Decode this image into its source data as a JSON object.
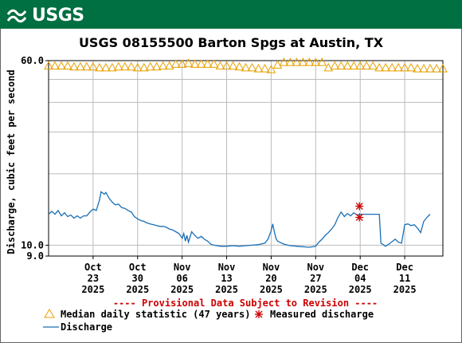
{
  "header": {
    "logo_text": "USGS"
  },
  "chart_data": {
    "type": "line",
    "title": "USGS 08155500 Barton Spgs at Austin, TX",
    "ylabel": "Discharge, cubic feet per second",
    "xlabel": "",
    "yscale": "log",
    "ylim": [
      9.0,
      60.0
    ],
    "y_tick_labels": [
      "9.0",
      "10.0",
      "60.0"
    ],
    "grid": true,
    "x_ticks": [
      {
        "month": "Oct",
        "day": "23",
        "year": "2025"
      },
      {
        "month": "Oct",
        "day": "30",
        "year": "2025"
      },
      {
        "month": "Nov",
        "day": "06",
        "year": "2025"
      },
      {
        "month": "Nov",
        "day": "13",
        "year": "2025"
      },
      {
        "month": "Nov",
        "day": "20",
        "year": "2025"
      },
      {
        "month": "Nov",
        "day": "27",
        "year": "2025"
      },
      {
        "month": "Dec",
        "day": "04",
        "year": "2025"
      },
      {
        "month": "Dec",
        "day": "11",
        "year": "2025"
      }
    ],
    "x_range": [
      "2025-10-16",
      "2025-12-17"
    ],
    "provisional_note": "---- Provisional Data Subject to Revision ----",
    "legend": [
      {
        "label": "Median daily statistic (47 years)",
        "marker": "triangle",
        "color": "#e8a000"
      },
      {
        "label": "Measured discharge",
        "marker": "asterisk",
        "color": "#cc0000"
      },
      {
        "label": "Discharge",
        "marker": "line",
        "color": "#1a6fb5"
      }
    ],
    "median_series": {
      "name": "Median daily statistic (47 years)",
      "points": [
        [
          "2025-10-16",
          57
        ],
        [
          "2025-10-17",
          57
        ],
        [
          "2025-10-18",
          57
        ],
        [
          "2025-10-19",
          57
        ],
        [
          "2025-10-20",
          56.5
        ],
        [
          "2025-10-21",
          56.5
        ],
        [
          "2025-10-22",
          56.5
        ],
        [
          "2025-10-23",
          56.5
        ],
        [
          "2025-10-24",
          56
        ],
        [
          "2025-10-25",
          56
        ],
        [
          "2025-10-26",
          56
        ],
        [
          "2025-10-27",
          56.5
        ],
        [
          "2025-10-28",
          56.5
        ],
        [
          "2025-10-29",
          56.5
        ],
        [
          "2025-10-30",
          56
        ],
        [
          "2025-10-31",
          56
        ],
        [
          "2025-11-01",
          56.5
        ],
        [
          "2025-11-02",
          56.5
        ],
        [
          "2025-11-03",
          57
        ],
        [
          "2025-11-04",
          57
        ],
        [
          "2025-11-05",
          58
        ],
        [
          "2025-11-06",
          58
        ],
        [
          "2025-11-07",
          58.5
        ],
        [
          "2025-11-08",
          58
        ],
        [
          "2025-11-09",
          58
        ],
        [
          "2025-11-10",
          58
        ],
        [
          "2025-11-11",
          58
        ],
        [
          "2025-11-12",
          57
        ],
        [
          "2025-11-13",
          57
        ],
        [
          "2025-11-14",
          57
        ],
        [
          "2025-11-15",
          56.5
        ],
        [
          "2025-11-16",
          56
        ],
        [
          "2025-11-17",
          56
        ],
        [
          "2025-11-18",
          55.5
        ],
        [
          "2025-11-19",
          55.5
        ],
        [
          "2025-11-20",
          55
        ],
        [
          "2025-11-21",
          57.5
        ],
        [
          "2025-11-22",
          59
        ],
        [
          "2025-11-23",
          59
        ],
        [
          "2025-11-24",
          59
        ],
        [
          "2025-11-25",
          59
        ],
        [
          "2025-11-26",
          59
        ],
        [
          "2025-11-27",
          59
        ],
        [
          "2025-11-28",
          59
        ],
        [
          "2025-11-29",
          56
        ],
        [
          "2025-11-30",
          57
        ],
        [
          "2025-12-01",
          57
        ],
        [
          "2025-12-02",
          57
        ],
        [
          "2025-12-03",
          57
        ],
        [
          "2025-12-04",
          57
        ],
        [
          "2025-12-05",
          57
        ],
        [
          "2025-12-06",
          57
        ],
        [
          "2025-12-07",
          56
        ],
        [
          "2025-12-08",
          56
        ],
        [
          "2025-12-09",
          56
        ],
        [
          "2025-12-10",
          56
        ],
        [
          "2025-12-11",
          56
        ],
        [
          "2025-12-12",
          56
        ],
        [
          "2025-12-13",
          55.5
        ],
        [
          "2025-12-14",
          55.5
        ],
        [
          "2025-12-15",
          55.5
        ],
        [
          "2025-12-16",
          55.5
        ],
        [
          "2025-12-17",
          55.5
        ]
      ]
    },
    "measured_series": {
      "name": "Measured discharge",
      "points": [
        [
          "2025-12-03T21:00",
          14.6
        ],
        [
          "2025-12-03T21:00",
          13.1
        ]
      ]
    },
    "discharge_series": {
      "name": "Discharge",
      "points": [
        [
          "2025-10-16",
          13.5
        ],
        [
          "2025-10-16T12:00",
          13.9
        ],
        [
          "2025-10-17",
          13.5
        ],
        [
          "2025-10-17T12:00",
          14.0
        ],
        [
          "2025-10-18",
          13.3
        ],
        [
          "2025-10-18T12:00",
          13.7
        ],
        [
          "2025-10-19",
          13.2
        ],
        [
          "2025-10-19T12:00",
          13.4
        ],
        [
          "2025-10-20",
          13.0
        ],
        [
          "2025-10-20T12:00",
          13.3
        ],
        [
          "2025-10-21",
          13.0
        ],
        [
          "2025-10-21T12:00",
          13.3
        ],
        [
          "2025-10-22",
          13.3
        ],
        [
          "2025-10-22T12:00",
          13.8
        ],
        [
          "2025-10-23",
          14.2
        ],
        [
          "2025-10-23T12:00",
          14.0
        ],
        [
          "2025-10-24",
          15.5
        ],
        [
          "2025-10-24T06:00",
          16.8
        ],
        [
          "2025-10-24T18:00",
          16.4
        ],
        [
          "2025-10-25",
          16.7
        ],
        [
          "2025-10-25T12:00",
          15.8
        ],
        [
          "2025-10-26",
          15.2
        ],
        [
          "2025-10-26T12:00",
          14.8
        ],
        [
          "2025-10-27",
          14.9
        ],
        [
          "2025-10-27T12:00",
          14.4
        ],
        [
          "2025-10-28",
          14.3
        ],
        [
          "2025-10-28T12:00",
          14.0
        ],
        [
          "2025-10-29",
          13.8
        ],
        [
          "2025-10-29T12:00",
          13.2
        ],
        [
          "2025-10-30",
          12.9
        ],
        [
          "2025-10-30T12:00",
          12.7
        ],
        [
          "2025-10-31",
          12.6
        ],
        [
          "2025-10-31T12:00",
          12.4
        ],
        [
          "2025-11-01",
          12.3
        ],
        [
          "2025-11-01T12:00",
          12.2
        ],
        [
          "2025-11-02",
          12.1
        ],
        [
          "2025-11-02T12:00",
          12.0
        ],
        [
          "2025-11-03",
          12.0
        ],
        [
          "2025-11-03T12:00",
          11.9
        ],
        [
          "2025-11-04",
          11.7
        ],
        [
          "2025-11-04T12:00",
          11.6
        ],
        [
          "2025-11-05",
          11.4
        ],
        [
          "2025-11-05T12:00",
          11.2
        ],
        [
          "2025-11-06",
          10.7
        ],
        [
          "2025-11-06T06:00",
          11.2
        ],
        [
          "2025-11-06T12:00",
          10.4
        ],
        [
          "2025-11-06T18:00",
          11.0
        ],
        [
          "2025-11-07",
          10.3
        ],
        [
          "2025-11-07T12:00",
          11.4
        ],
        [
          "2025-11-08",
          11.0
        ],
        [
          "2025-11-08T12:00",
          10.7
        ],
        [
          "2025-11-09",
          10.9
        ],
        [
          "2025-11-09T12:00",
          10.6
        ],
        [
          "2025-11-10",
          10.4
        ],
        [
          "2025-11-10T12:00",
          10.1
        ],
        [
          "2025-11-11",
          10.0
        ],
        [
          "2025-11-11T12:00",
          9.95
        ],
        [
          "2025-11-12",
          9.9
        ],
        [
          "2025-11-13",
          9.9
        ],
        [
          "2025-11-14",
          9.95
        ],
        [
          "2025-11-15",
          9.9
        ],
        [
          "2025-11-16",
          9.95
        ],
        [
          "2025-11-17",
          10.0
        ],
        [
          "2025-11-18",
          10.05
        ],
        [
          "2025-11-19",
          10.2
        ],
        [
          "2025-11-19T12:00",
          10.6
        ],
        [
          "2025-11-20",
          11.5
        ],
        [
          "2025-11-20T06:00",
          12.3
        ],
        [
          "2025-11-20T12:00",
          11.4
        ],
        [
          "2025-11-20T18:00",
          10.7
        ],
        [
          "2025-11-21",
          10.4
        ],
        [
          "2025-11-22",
          10.1
        ],
        [
          "2025-11-23",
          9.95
        ],
        [
          "2025-11-24",
          9.9
        ],
        [
          "2025-11-25",
          9.85
        ],
        [
          "2025-11-26",
          9.8
        ],
        [
          "2025-11-27",
          9.9
        ],
        [
          "2025-11-27T12:00",
          10.3
        ],
        [
          "2025-11-28",
          10.6
        ],
        [
          "2025-11-28T12:00",
          11.0
        ],
        [
          "2025-11-29",
          11.3
        ],
        [
          "2025-11-29T12:00",
          11.7
        ],
        [
          "2025-11-30",
          12.2
        ],
        [
          "2025-11-30T12:00",
          13.1
        ],
        [
          "2025-12-01",
          13.8
        ],
        [
          "2025-12-01T12:00",
          13.2
        ],
        [
          "2025-12-02",
          13.6
        ],
        [
          "2025-12-02T12:00",
          13.3
        ],
        [
          "2025-12-03",
          13.7
        ],
        [
          "2025-12-03T12:00",
          13.4
        ],
        [
          "2025-12-04",
          13.5
        ],
        [
          "2025-12-05",
          13.5
        ],
        [
          "2025-12-06",
          13.5
        ],
        [
          "2025-12-07",
          13.5
        ],
        [
          "2025-12-07T06:00",
          10.2
        ],
        [
          "2025-12-08",
          9.9
        ],
        [
          "2025-12-08T12:00",
          10.1
        ],
        [
          "2025-12-09",
          10.35
        ],
        [
          "2025-12-09T12:00",
          10.6
        ],
        [
          "2025-12-10",
          10.3
        ],
        [
          "2025-12-10T12:00",
          10.2
        ],
        [
          "2025-12-11",
          12.2
        ],
        [
          "2025-12-11T12:00",
          12.3
        ],
        [
          "2025-12-12",
          12.1
        ],
        [
          "2025-12-12T12:00",
          12.2
        ],
        [
          "2025-12-13",
          11.8
        ],
        [
          "2025-12-13T12:00",
          11.3
        ],
        [
          "2025-12-14",
          12.6
        ],
        [
          "2025-12-14T12:00",
          13.1
        ],
        [
          "2025-12-15",
          13.5
        ]
      ]
    }
  }
}
